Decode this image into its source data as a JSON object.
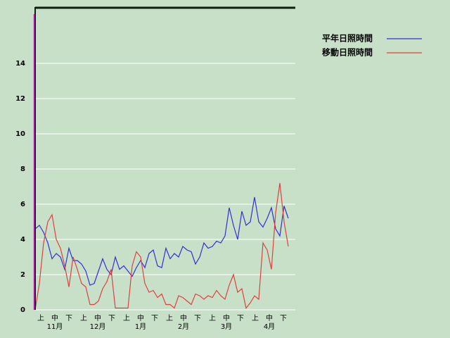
{
  "chart_data": {
    "type": "line",
    "xticks": [
      "上",
      "中",
      "下",
      "上",
      "中",
      "下",
      "上",
      "中",
      "下",
      "上",
      "中",
      "下",
      "上",
      "中",
      "下",
      "上",
      "中",
      "下"
    ],
    "month_labels": [
      "11月",
      "12月",
      "1月",
      "2月",
      "3月",
      "4月"
    ],
    "ylim": [
      0,
      17.2
    ],
    "yticks": [
      0,
      2,
      4,
      6,
      8,
      10,
      12,
      14
    ],
    "grid": true,
    "series": [
      {
        "name": "平年日照時間",
        "color": "#3030d8",
        "values": [
          4.6,
          4.8,
          4.4,
          3.8,
          2.9,
          3.2,
          3.0,
          2.3,
          3.5,
          2.8,
          2.8,
          2.6,
          2.2,
          1.4,
          1.5,
          2.2,
          2.9,
          2.3,
          2.0,
          3.0,
          2.3,
          2.5,
          2.2,
          1.9,
          2.4,
          2.8,
          2.4,
          3.2,
          3.4,
          2.5,
          2.4,
          3.5,
          2.9,
          3.2,
          3.0,
          3.6,
          3.4,
          3.3,
          2.6,
          3.0,
          3.8,
          3.5,
          3.6,
          3.9,
          3.8,
          4.2,
          5.8,
          4.8,
          4.0,
          5.6,
          4.8,
          5.0,
          6.4,
          5.0,
          4.7,
          5.2,
          5.8,
          4.6,
          4.2,
          5.9,
          5.2
        ]
      },
      {
        "name": "移動日照時間",
        "color": "#e04040",
        "values": [
          0,
          1.5,
          3.8,
          5.0,
          5.4,
          4.0,
          3.5,
          2.5,
          1.3,
          3.0,
          2.3,
          1.5,
          1.3,
          0.3,
          0.3,
          0.5,
          1.2,
          1.6,
          2.3,
          0.1,
          0.1,
          0.1,
          0.1,
          2.5,
          3.3,
          3.0,
          1.5,
          1.0,
          1.1,
          0.7,
          0.9,
          0.3,
          0.3,
          0.1,
          0.8,
          0.7,
          0.5,
          0.3,
          0.9,
          0.8,
          0.6,
          0.8,
          0.7,
          1.1,
          0.8,
          0.6,
          1.4,
          2.0,
          1.0,
          1.2,
          0.1,
          0.4,
          0.8,
          0.6,
          3.8,
          3.4,
          2.3,
          5.5,
          7.2,
          5.0,
          3.6
        ]
      }
    ]
  }
}
